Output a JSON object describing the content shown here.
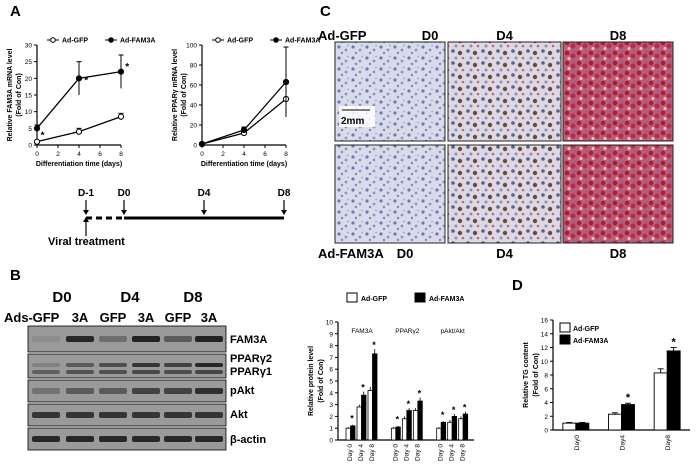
{
  "panels": {
    "A": "A",
    "B": "B",
    "C": "C",
    "D": "D"
  },
  "colors": {
    "ink": "#000000",
    "stain_red": "#b8304a",
    "stain_blue": "#7d86c2",
    "micro_bg": "#dadbe9",
    "blot_bg": "#9a9a9a",
    "blot_band": "#1c1c1c"
  },
  "panelA": {
    "legend_gfp": "Ad-GFP",
    "legend_fam": "Ad-FAM3A",
    "asterisk": "*"
  },
  "timeline": {
    "points": [
      "D-1",
      "D0",
      "D4",
      "D8"
    ],
    "treatment": "Viral treatment"
  },
  "panelC": {
    "row1_label": "Ad-GFP",
    "row2_label": "Ad-FAM3A",
    "day_labels": [
      "D0",
      "D4",
      "D8"
    ],
    "scale_bar": "2mm"
  },
  "panelB": {
    "ads_label": "Ads-",
    "day_headers": [
      "D0",
      "D4",
      "D8"
    ],
    "lanes": [
      "GFP",
      "3A",
      "GFP",
      "3A",
      "GFP",
      "3A"
    ],
    "rows": [
      "FAM3A",
      "PPARγ2",
      "PPARγ1",
      "pAkt",
      "Akt",
      "β-actin"
    ]
  },
  "chart_data": [
    {
      "type": "line",
      "panel": "A-left",
      "title": "",
      "xlabel": "Differentiation time (days)",
      "ylabel": "Relative FAM3A mRNA level\n(Fold of Con)",
      "x": [
        0,
        4,
        8
      ],
      "xticks": [
        0,
        2,
        4,
        6,
        8
      ],
      "yticks": [
        0,
        5,
        10,
        15,
        20,
        25,
        30
      ],
      "xlim": [
        0,
        8
      ],
      "ylim": [
        0,
        30
      ],
      "series": [
        {
          "name": "Ad-GFP",
          "marker": "open-circle",
          "values": [
            1,
            4,
            8.5
          ],
          "errors": [
            0.3,
            1,
            1
          ]
        },
        {
          "name": "Ad-FAM3A",
          "marker": "filled-circle",
          "values": [
            5,
            20,
            22
          ],
          "errors": [
            1,
            5,
            5
          ]
        }
      ],
      "annotations": [
        "*",
        "*",
        "*"
      ]
    },
    {
      "type": "line",
      "panel": "A-right",
      "title": "",
      "xlabel": "Differentiation time (days)",
      "ylabel": "Relative PPARγ mRNA level\n(Fold of Con)",
      "x": [
        0,
        4,
        8
      ],
      "xticks": [
        0,
        2,
        4,
        6,
        8
      ],
      "yticks": [
        0,
        20,
        40,
        60,
        80,
        100
      ],
      "xlim": [
        0,
        8
      ],
      "ylim": [
        0,
        100
      ],
      "series": [
        {
          "name": "Ad-GFP",
          "marker": "open-circle",
          "values": [
            1,
            12,
            46
          ],
          "errors": [
            0.5,
            2,
            15
          ]
        },
        {
          "name": "Ad-FAM3A",
          "marker": "filled-circle",
          "values": [
            1,
            15,
            63
          ],
          "errors": [
            0.5,
            3,
            35
          ]
        }
      ]
    },
    {
      "type": "bar",
      "panel": "B-right",
      "title": "",
      "ylabel": "Relative protein level\n(Fold of Con)",
      "groups": [
        "FAM3A",
        "PPARγ2",
        "pAkt/Akt"
      ],
      "categories": [
        "Day 0",
        "Day 4",
        "Day 8"
      ],
      "ylim": [
        0,
        10
      ],
      "yticks": [
        0,
        1,
        2,
        3,
        4,
        5,
        6,
        7,
        8,
        9,
        10
      ],
      "legend": "top",
      "series": [
        {
          "name": "Ad-GFP",
          "values": [
            [
              1,
              2.8,
              4.2
            ],
            [
              1,
              1.8,
              2.5
            ],
            [
              1,
              1.5,
              1.8
            ]
          ],
          "errors": [
            [
              0.1,
              0.2,
              0.3
            ],
            [
              0.1,
              0.2,
              0.2
            ],
            [
              0.1,
              0.2,
              0.2
            ]
          ]
        },
        {
          "name": "Ad-FAM3A",
          "values": [
            [
              1.2,
              3.8,
              7.3
            ],
            [
              1.1,
              2.5,
              3.3
            ],
            [
              1.5,
              2.0,
              2.2
            ]
          ],
          "errors": [
            [
              0.1,
              0.3,
              0.4
            ],
            [
              0.1,
              0.2,
              0.3
            ],
            [
              0.1,
              0.2,
              0.2
            ]
          ]
        }
      ],
      "annotations": [
        "*"
      ]
    },
    {
      "type": "bar",
      "panel": "D",
      "title": "",
      "ylabel": "Relative TG content\n(Fold of Con)",
      "categories": [
        "Day0",
        "Day4",
        "Day8"
      ],
      "ylim": [
        0,
        16
      ],
      "yticks": [
        0,
        2,
        4,
        6,
        8,
        10,
        12,
        14,
        16
      ],
      "legend": "top-left",
      "series": [
        {
          "name": "Ad-GFP",
          "values": [
            1,
            2.3,
            8.3
          ],
          "errors": [
            0.1,
            0.2,
            0.6
          ]
        },
        {
          "name": "Ad-FAM3A",
          "values": [
            1,
            3.7,
            11.5
          ],
          "errors": [
            0.1,
            0.2,
            0.5
          ]
        }
      ],
      "annotations": [
        "*"
      ]
    }
  ]
}
